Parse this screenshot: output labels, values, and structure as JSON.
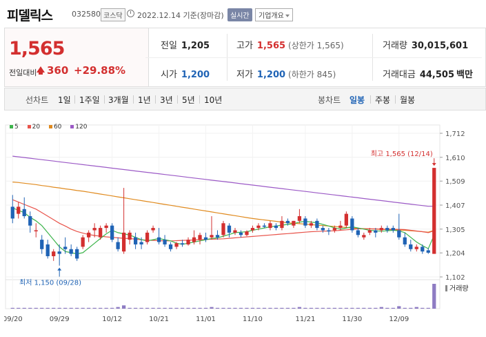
{
  "header": {
    "stock_name": "피델릭스",
    "stock_code": "032580",
    "market": "코스닥",
    "date": "2022.12.14 기준(장마감)",
    "realtime_button": "실시간",
    "company_info_button": "기업개요"
  },
  "quote": {
    "price": "1,565",
    "change_label": "전일대비",
    "change_value": "360",
    "change_percent": "+29.88%",
    "prev_close_label": "전일",
    "prev_close": "1,205",
    "high_label": "고가",
    "high": "1,565",
    "high_sub": "(상한가 1,565)",
    "volume_label": "거래량",
    "volume": "30,015,601",
    "open_label": "시가",
    "open": "1,200",
    "low_label": "저가",
    "low": "1,200",
    "low_sub": "(하한가 845)",
    "amount_label": "거래대금",
    "amount": "44,505",
    "amount_unit": "백만"
  },
  "tabs": {
    "line_chart_label": "선차트",
    "periods": [
      "1일",
      "1주일",
      "3개월",
      "1년",
      "3년",
      "5년",
      "10년"
    ],
    "candle_chart_label": "봉차트",
    "candle_periods": [
      "일봉",
      "주봉",
      "월봉"
    ],
    "active_candle": "일봉"
  },
  "colors": {
    "up": "#d32f2f",
    "down": "#1f63b5",
    "ma5": "#3cb44b",
    "ma20": "#e8534a",
    "ma60": "#e08a1e",
    "ma120": "#9b59c6",
    "volume": "#8e7cc3"
  },
  "chart_data": {
    "type": "candlestick",
    "legend": [
      "5",
      "20",
      "60",
      "120"
    ],
    "y_ticks": [
      "1,712",
      "1,610",
      "1,509",
      "1,407",
      "1,305",
      "1,204",
      "1,102"
    ],
    "ylim": [
      1102,
      1712
    ],
    "x_ticks": [
      "09/20",
      "09/29",
      "10/12",
      "10/21",
      "11/01",
      "11/10",
      "11/21",
      "11/30",
      "12/09"
    ],
    "high_annotation": "최고 1,565 (12/14)",
    "low_annotation": "최저 1,150 (09/28)",
    "volume_label": "거래량",
    "candles": [
      {
        "o": 1400,
        "h": 1450,
        "l": 1330,
        "c": 1350
      },
      {
        "o": 1370,
        "h": 1420,
        "l": 1350,
        "c": 1400
      },
      {
        "o": 1390,
        "h": 1440,
        "l": 1350,
        "c": 1360
      },
      {
        "o": 1360,
        "h": 1380,
        "l": 1290,
        "c": 1320
      },
      {
        "o": 1300,
        "h": 1330,
        "l": 1270,
        "c": 1300
      },
      {
        "o": 1260,
        "h": 1280,
        "l": 1200,
        "c": 1220
      },
      {
        "o": 1240,
        "h": 1260,
        "l": 1180,
        "c": 1190
      },
      {
        "o": 1190,
        "h": 1220,
        "l": 1170,
        "c": 1210
      },
      {
        "o": 1210,
        "h": 1240,
        "l": 1150,
        "c": 1200
      },
      {
        "o": 1230,
        "h": 1270,
        "l": 1200,
        "c": 1220
      },
      {
        "o": 1220,
        "h": 1240,
        "l": 1190,
        "c": 1200
      },
      {
        "o": 1220,
        "h": 1230,
        "l": 1170,
        "c": 1180
      },
      {
        "o": 1230,
        "h": 1280,
        "l": 1220,
        "c": 1270
      },
      {
        "o": 1270,
        "h": 1300,
        "l": 1250,
        "c": 1290
      },
      {
        "o": 1300,
        "h": 1330,
        "l": 1270,
        "c": 1310
      },
      {
        "o": 1270,
        "h": 1320,
        "l": 1260,
        "c": 1310
      },
      {
        "o": 1310,
        "h": 1330,
        "l": 1290,
        "c": 1320
      },
      {
        "o": 1320,
        "h": 1330,
        "l": 1250,
        "c": 1260
      },
      {
        "o": 1250,
        "h": 1270,
        "l": 1210,
        "c": 1220
      },
      {
        "o": 1210,
        "h": 1480,
        "l": 1200,
        "c": 1290
      },
      {
        "o": 1260,
        "h": 1300,
        "l": 1240,
        "c": 1290
      },
      {
        "o": 1270,
        "h": 1290,
        "l": 1220,
        "c": 1240
      },
      {
        "o": 1250,
        "h": 1270,
        "l": 1220,
        "c": 1240
      },
      {
        "o": 1250,
        "h": 1300,
        "l": 1240,
        "c": 1290
      },
      {
        "o": 1300,
        "h": 1320,
        "l": 1290,
        "c": 1310
      },
      {
        "o": 1270,
        "h": 1310,
        "l": 1240,
        "c": 1250
      },
      {
        "o": 1260,
        "h": 1280,
        "l": 1230,
        "c": 1240
      },
      {
        "o": 1240,
        "h": 1250,
        "l": 1210,
        "c": 1220
      },
      {
        "o": 1230,
        "h": 1250,
        "l": 1220,
        "c": 1245
      },
      {
        "o": 1245,
        "h": 1260,
        "l": 1230,
        "c": 1240
      },
      {
        "o": 1240,
        "h": 1270,
        "l": 1235,
        "c": 1260
      },
      {
        "o": 1250,
        "h": 1300,
        "l": 1240,
        "c": 1270
      },
      {
        "o": 1260,
        "h": 1290,
        "l": 1240,
        "c": 1280
      },
      {
        "o": 1270,
        "h": 1290,
        "l": 1250,
        "c": 1260
      },
      {
        "o": 1270,
        "h": 1360,
        "l": 1260,
        "c": 1280
      },
      {
        "o": 1280,
        "h": 1300,
        "l": 1260,
        "c": 1270
      },
      {
        "o": 1280,
        "h": 1340,
        "l": 1270,
        "c": 1330
      },
      {
        "o": 1320,
        "h": 1330,
        "l": 1270,
        "c": 1290
      },
      {
        "o": 1290,
        "h": 1310,
        "l": 1280,
        "c": 1300
      },
      {
        "o": 1290,
        "h": 1300,
        "l": 1270,
        "c": 1280
      },
      {
        "o": 1280,
        "h": 1300,
        "l": 1275,
        "c": 1295
      },
      {
        "o": 1300,
        "h": 1320,
        "l": 1290,
        "c": 1310
      },
      {
        "o": 1310,
        "h": 1330,
        "l": 1300,
        "c": 1320
      },
      {
        "o": 1320,
        "h": 1330,
        "l": 1310,
        "c": 1315
      },
      {
        "o": 1310,
        "h": 1340,
        "l": 1300,
        "c": 1330
      },
      {
        "o": 1320,
        "h": 1330,
        "l": 1300,
        "c": 1310
      },
      {
        "o": 1310,
        "h": 1360,
        "l": 1300,
        "c": 1340
      },
      {
        "o": 1340,
        "h": 1350,
        "l": 1320,
        "c": 1330
      },
      {
        "o": 1320,
        "h": 1340,
        "l": 1310,
        "c": 1340
      },
      {
        "o": 1340,
        "h": 1390,
        "l": 1330,
        "c": 1360
      },
      {
        "o": 1350,
        "h": 1360,
        "l": 1310,
        "c": 1320
      },
      {
        "o": 1320,
        "h": 1340,
        "l": 1310,
        "c": 1330
      },
      {
        "o": 1340,
        "h": 1350,
        "l": 1300,
        "c": 1310
      },
      {
        "o": 1310,
        "h": 1320,
        "l": 1290,
        "c": 1300
      },
      {
        "o": 1300,
        "h": 1310,
        "l": 1280,
        "c": 1295
      },
      {
        "o": 1300,
        "h": 1320,
        "l": 1290,
        "c": 1310
      },
      {
        "o": 1310,
        "h": 1340,
        "l": 1300,
        "c": 1320
      },
      {
        "o": 1320,
        "h": 1380,
        "l": 1310,
        "c": 1370
      },
      {
        "o": 1350,
        "h": 1360,
        "l": 1290,
        "c": 1300
      },
      {
        "o": 1300,
        "h": 1310,
        "l": 1270,
        "c": 1280
      },
      {
        "o": 1270,
        "h": 1290,
        "l": 1260,
        "c": 1280
      },
      {
        "o": 1290,
        "h": 1310,
        "l": 1280,
        "c": 1300
      },
      {
        "o": 1300,
        "h": 1310,
        "l": 1270,
        "c": 1290
      },
      {
        "o": 1300,
        "h": 1320,
        "l": 1290,
        "c": 1310
      },
      {
        "o": 1310,
        "h": 1320,
        "l": 1290,
        "c": 1300
      },
      {
        "o": 1310,
        "h": 1320,
        "l": 1290,
        "c": 1300
      },
      {
        "o": 1300,
        "h": 1370,
        "l": 1260,
        "c": 1270
      },
      {
        "o": 1270,
        "h": 1290,
        "l": 1230,
        "c": 1240
      },
      {
        "o": 1240,
        "h": 1260,
        "l": 1210,
        "c": 1220
      },
      {
        "o": 1220,
        "h": 1240,
        "l": 1210,
        "c": 1230
      },
      {
        "o": 1230,
        "h": 1240,
        "l": 1200,
        "c": 1210
      },
      {
        "o": 1215,
        "h": 1225,
        "l": 1200,
        "c": 1205
      },
      {
        "o": 1200,
        "h": 1565,
        "l": 1200,
        "c": 1565
      }
    ],
    "ma5": [
      1395,
      1385,
      1375,
      1355,
      1340,
      1320,
      1290,
      1260,
      1230,
      1210,
      1205,
      1200,
      1205,
      1225,
      1245,
      1265,
      1285,
      1300,
      1290,
      1285,
      1280,
      1270,
      1260,
      1255,
      1260,
      1265,
      1260,
      1255,
      1245,
      1240,
      1245,
      1250,
      1255,
      1260,
      1265,
      1268,
      1275,
      1282,
      1290,
      1292,
      1294,
      1300,
      1305,
      1310,
      1315,
      1318,
      1322,
      1325,
      1328,
      1335,
      1338,
      1335,
      1332,
      1325,
      1318,
      1310,
      1305,
      1310,
      1315,
      1310,
      1305,
      1300,
      1298,
      1296,
      1298,
      1300,
      1298,
      1290,
      1270,
      1250,
      1235,
      1222,
      1280
    ],
    "ma20": [
      1430,
      1420,
      1410,
      1400,
      1390,
      1375,
      1360,
      1345,
      1330,
      1318,
      1305,
      1295,
      1288,
      1282,
      1278,
      1275,
      1272,
      1270,
      1268,
      1266,
      1265,
      1262,
      1260,
      1258,
      1257,
      1256,
      1255,
      1255,
      1256,
      1257,
      1258,
      1259,
      1260,
      1261,
      1262,
      1263,
      1264,
      1266,
      1268,
      1270,
      1272,
      1274,
      1276,
      1278,
      1280,
      1282,
      1284,
      1286,
      1288,
      1290,
      1292,
      1294,
      1295,
      1296,
      1297,
      1298,
      1300,
      1302,
      1304,
      1306,
      1306,
      1306,
      1306,
      1305,
      1305,
      1304,
      1304,
      1303,
      1300,
      1297,
      1294,
      1290,
      1298
    ],
    "ma60": [
      1505,
      1503,
      1500,
      1497,
      1494,
      1490,
      1487,
      1483,
      1480,
      1476,
      1473,
      1469,
      1466,
      1462,
      1458,
      1454,
      1450,
      1446,
      1442,
      1438,
      1434,
      1430,
      1426,
      1422,
      1418,
      1414,
      1410,
      1406,
      1402,
      1398,
      1394,
      1390,
      1386,
      1382,
      1378,
      1374,
      1370,
      1366,
      1362,
      1358,
      1354,
      1350,
      1347,
      1344,
      1341,
      1338,
      1335,
      1332,
      1330,
      1328,
      1326,
      1324,
      1322,
      1320,
      1318,
      1316,
      1314,
      1312,
      1310,
      1308,
      1307,
      1306,
      1305,
      1304,
      1303,
      1302,
      1301,
      1300,
      1298,
      1296,
      1294,
      1292,
      1300
    ],
    "ma120": [
      1615,
      1612,
      1609,
      1606,
      1603,
      1600,
      1597,
      1594,
      1591,
      1588,
      1585,
      1582,
      1579,
      1576,
      1573,
      1570,
      1567,
      1564,
      1561,
      1558,
      1555,
      1552,
      1549,
      1546,
      1543,
      1540,
      1537,
      1534,
      1531,
      1528,
      1525,
      1522,
      1519,
      1516,
      1513,
      1510,
      1507,
      1504,
      1501,
      1498,
      1495,
      1492,
      1489,
      1486,
      1483,
      1480,
      1477,
      1474,
      1471,
      1468,
      1465,
      1462,
      1459,
      1456,
      1453,
      1450,
      1447,
      1444,
      1441,
      1438,
      1435,
      1432,
      1429,
      1426,
      1423,
      1420,
      1417,
      1414,
      1411,
      1408,
      1405,
      1402,
      1402
    ],
    "volumes": [
      1,
      1,
      1,
      1,
      1,
      1,
      1,
      1,
      1,
      1,
      1,
      1,
      1,
      1,
      1,
      1,
      1,
      1,
      2,
      4,
      1,
      1,
      1,
      1,
      1,
      1,
      1,
      1,
      1,
      1,
      1,
      1,
      1,
      1,
      2,
      1,
      1,
      1,
      1,
      1,
      1,
      1,
      1,
      1,
      1,
      1,
      1,
      1,
      1,
      2,
      1,
      1,
      1,
      1,
      1,
      1,
      1,
      1,
      1,
      1,
      1,
      1,
      1,
      2,
      1,
      1,
      3,
      1,
      1,
      2,
      1,
      1,
      30
    ]
  }
}
